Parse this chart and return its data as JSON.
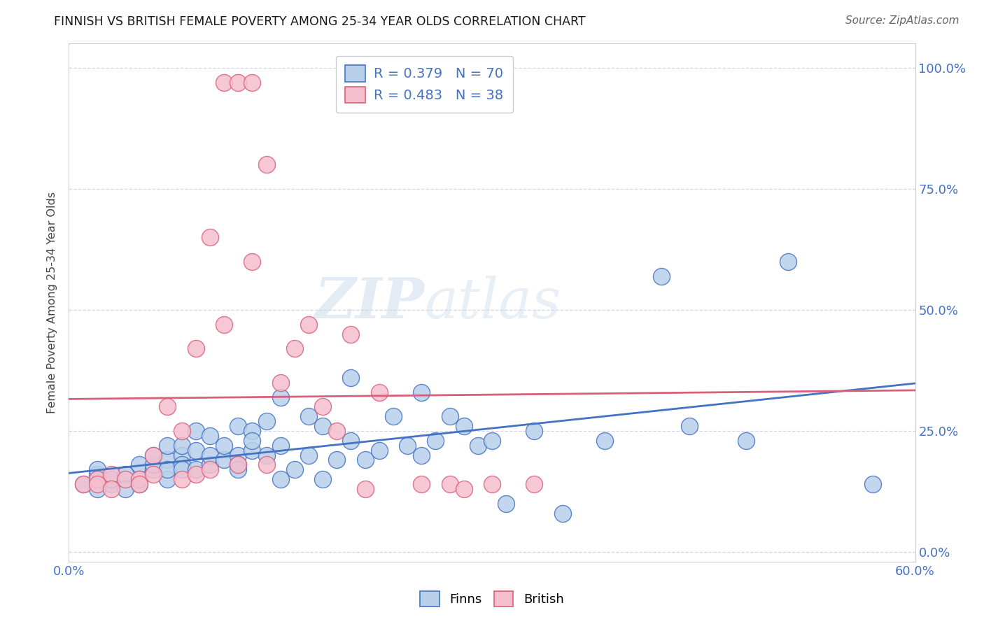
{
  "title": "FINNISH VS BRITISH FEMALE POVERTY AMONG 25-34 YEAR OLDS CORRELATION CHART",
  "source": "Source: ZipAtlas.com",
  "ylabel": "Female Poverty Among 25-34 Year Olds",
  "xlim": [
    0.0,
    0.6
  ],
  "ylim": [
    -0.02,
    1.05
  ],
  "ytick_positions": [
    0.0,
    0.25,
    0.5,
    0.75,
    1.0
  ],
  "xtick_positions": [
    0.0,
    0.1,
    0.2,
    0.3,
    0.4,
    0.5,
    0.6
  ],
  "finns_R": "0.379",
  "finns_N": "70",
  "british_R": "0.483",
  "british_N": "38",
  "finns_color": "#b8d0ea",
  "british_color": "#f5bfce",
  "finns_line_color": "#4472c4",
  "british_line_color": "#d9607a",
  "watermark_zip": "ZIP",
  "watermark_atlas": "atlas",
  "background_color": "#ffffff",
  "grid_color": "#d0d8e8",
  "finns_x": [
    0.01,
    0.02,
    0.02,
    0.02,
    0.03,
    0.03,
    0.04,
    0.04,
    0.05,
    0.05,
    0.05,
    0.06,
    0.06,
    0.06,
    0.07,
    0.07,
    0.07,
    0.07,
    0.08,
    0.08,
    0.08,
    0.08,
    0.09,
    0.09,
    0.09,
    0.1,
    0.1,
    0.1,
    0.11,
    0.11,
    0.12,
    0.12,
    0.12,
    0.12,
    0.13,
    0.13,
    0.13,
    0.14,
    0.14,
    0.15,
    0.15,
    0.15,
    0.16,
    0.17,
    0.17,
    0.18,
    0.18,
    0.19,
    0.2,
    0.2,
    0.21,
    0.22,
    0.23,
    0.24,
    0.25,
    0.25,
    0.26,
    0.27,
    0.28,
    0.29,
    0.3,
    0.31,
    0.33,
    0.35,
    0.38,
    0.42,
    0.44,
    0.48,
    0.51,
    0.57
  ],
  "finns_y": [
    0.14,
    0.16,
    0.17,
    0.13,
    0.14,
    0.15,
    0.16,
    0.13,
    0.18,
    0.15,
    0.14,
    0.17,
    0.18,
    0.2,
    0.19,
    0.15,
    0.17,
    0.22,
    0.2,
    0.18,
    0.17,
    0.22,
    0.21,
    0.25,
    0.17,
    0.18,
    0.2,
    0.24,
    0.19,
    0.22,
    0.2,
    0.18,
    0.26,
    0.17,
    0.21,
    0.25,
    0.23,
    0.2,
    0.27,
    0.22,
    0.32,
    0.15,
    0.17,
    0.28,
    0.2,
    0.26,
    0.15,
    0.19,
    0.23,
    0.36,
    0.19,
    0.21,
    0.28,
    0.22,
    0.2,
    0.33,
    0.23,
    0.28,
    0.26,
    0.22,
    0.23,
    0.1,
    0.25,
    0.08,
    0.23,
    0.57,
    0.26,
    0.23,
    0.6,
    0.14
  ],
  "british_x": [
    0.01,
    0.02,
    0.02,
    0.03,
    0.03,
    0.04,
    0.05,
    0.05,
    0.06,
    0.06,
    0.07,
    0.08,
    0.08,
    0.09,
    0.09,
    0.1,
    0.1,
    0.11,
    0.11,
    0.12,
    0.12,
    0.13,
    0.13,
    0.14,
    0.14,
    0.15,
    0.16,
    0.17,
    0.18,
    0.19,
    0.2,
    0.21,
    0.22,
    0.25,
    0.27,
    0.28,
    0.3,
    0.33
  ],
  "british_y": [
    0.14,
    0.15,
    0.14,
    0.16,
    0.13,
    0.15,
    0.15,
    0.14,
    0.16,
    0.2,
    0.3,
    0.25,
    0.15,
    0.42,
    0.16,
    0.65,
    0.17,
    0.97,
    0.47,
    0.97,
    0.18,
    0.97,
    0.6,
    0.8,
    0.18,
    0.35,
    0.42,
    0.47,
    0.3,
    0.25,
    0.45,
    0.13,
    0.33,
    0.14,
    0.14,
    0.13,
    0.14,
    0.14
  ]
}
